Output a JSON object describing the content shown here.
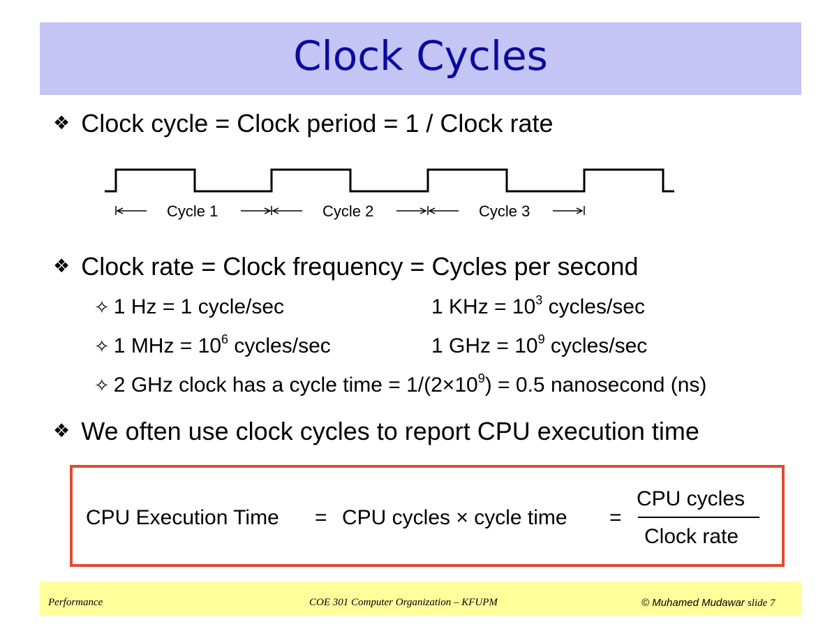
{
  "title": "Clock Cycles",
  "bullets": [
    "Clock cycle = Clock period = 1 / Clock rate",
    "Clock rate = Clock frequency = Cycles per second",
    "We often use clock cycles to report CPU execution time"
  ],
  "bullet_symbol": "❖",
  "sub_symbol": "✧",
  "waveform": {
    "cycle_labels": [
      "Cycle 1",
      "Cycle 2",
      "Cycle 3"
    ]
  },
  "subs": {
    "hz": "1 Hz = 1 cycle/sec",
    "khz_prefix": "1 KHz = 10",
    "khz_exp": "3",
    "khz_suffix": " cycles/sec",
    "mhz_prefix": "1 MHz = 10",
    "mhz_exp": "6",
    "mhz_suffix": " cycles/sec",
    "ghz_prefix": "1 GHz = 10",
    "ghz_exp": "9",
    "ghz_suffix": " cycles/sec",
    "cycle_prefix": "2 GHz clock has a cycle time = 1/(2×10",
    "cycle_exp": "9",
    "cycle_suffix": ") = 0.5 nanosecond (ns)"
  },
  "formula": {
    "lhs": "CPU Execution Time",
    "eq1": "=",
    "middle": "CPU cycles × cycle time",
    "eq2": "=",
    "numerator": "CPU cycles",
    "denominator": "Clock rate"
  },
  "footer": {
    "left": "Performance",
    "center": "COE 301 Computer Organization – KFUPM",
    "right_author": "© Muhamed Mudawar",
    "right_slide": "slide 7"
  },
  "colors": {
    "title_bg": "#c4c4f5",
    "title_text": "#0a0aa0",
    "box_border": "#e04a33",
    "footer_bg": "#ffff9c"
  }
}
